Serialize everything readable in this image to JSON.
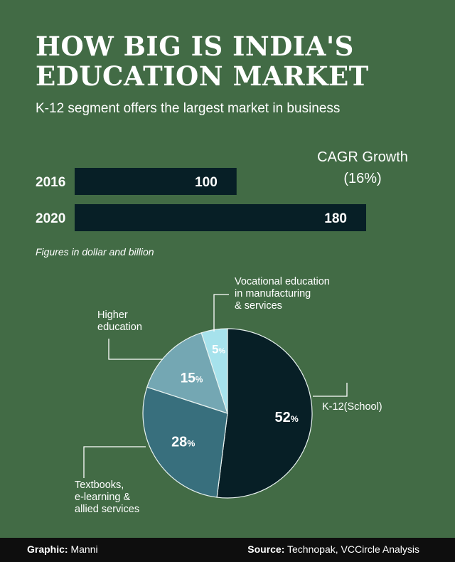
{
  "title": "HOW BIG IS INDIA'S EDUCATION MARKET",
  "subtitle": "K-12 segment offers the largest market in business",
  "cagr": {
    "line1": "CAGR Growth",
    "line2": "(16%)"
  },
  "note": "Figures in dollar and billion",
  "footer": {
    "graphic_label": "Graphic:",
    "graphic_value": "Manni",
    "source_label": "Source:",
    "source_value": "Technopak, VCCircle Analysis"
  },
  "colors": {
    "background": "#426b45",
    "bar": "#071f26",
    "footer": "#0e0e0e",
    "slices": [
      "#071f26",
      "#386f7d",
      "#74a7b3",
      "#a6e2ec"
    ]
  },
  "chart_data": [
    {
      "type": "bar",
      "orientation": "horizontal",
      "categories": [
        "2016",
        "2020"
      ],
      "values": [
        100,
        180
      ],
      "data_labels": [
        "100",
        "180"
      ]
    },
    {
      "type": "pie",
      "slices": [
        {
          "label": "K-12(School)",
          "value": 52,
          "value_label": "52"
        },
        {
          "label": "Textbooks, e-learning & allied services",
          "label_lines": [
            "Textbooks,",
            "e-learning &",
            "allied services"
          ],
          "value": 28,
          "value_label": "28"
        },
        {
          "label": "Higher education",
          "label_lines": [
            "Higher",
            "education"
          ],
          "value": 15,
          "value_label": "15"
        },
        {
          "label": "Vocational education in manufacturing & services",
          "label_lines": [
            "Vocational education",
            "in manufacturing",
            "& services"
          ],
          "value": 5,
          "value_label": "5"
        }
      ],
      "percent_suffix": "%"
    }
  ]
}
